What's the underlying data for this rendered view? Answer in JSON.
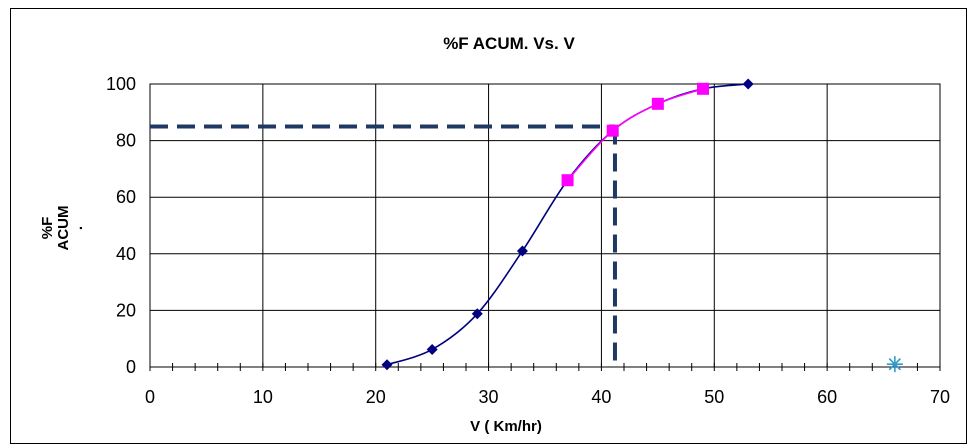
{
  "chart_data": {
    "type": "line",
    "title": "%F ACUM. Vs. V",
    "xlabel": "V ( Km/hr)",
    "ylabel_lines": [
      "%F",
      "ACUM",
      "."
    ],
    "xlim": [
      0,
      70
    ],
    "ylim": [
      0,
      100
    ],
    "x_ticks": [
      "0",
      "10",
      "20",
      "30",
      "40",
      "50",
      "60",
      "70"
    ],
    "y_ticks": [
      "0",
      "20",
      "40",
      "60",
      "80",
      "100"
    ],
    "grid": true,
    "series": [
      {
        "color": "#000080",
        "marker": "diamond",
        "x": [
          21,
          25,
          29,
          33,
          37,
          41,
          45,
          49,
          53
        ],
        "y": [
          0.8,
          6.2,
          18.8,
          41,
          66,
          83.5,
          93,
          98.3,
          100
        ]
      },
      {
        "color": "#FF00FF",
        "marker": "square",
        "x": [
          37,
          41,
          45,
          49
        ],
        "y": [
          66,
          83.5,
          93,
          98.3
        ]
      },
      {
        "color": "#3399CC",
        "marker": "star",
        "x": [
          66
        ],
        "y": [
          1
        ]
      }
    ],
    "reference_lines": {
      "color": "#1F3864",
      "style": "dashed",
      "x": 41.2,
      "y": 85
    }
  }
}
